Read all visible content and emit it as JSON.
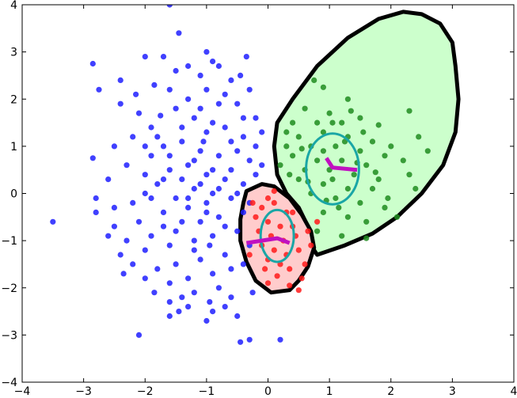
{
  "chart_data": {
    "type": "scatter",
    "title": "",
    "xlabel": "",
    "ylabel": "",
    "xlim": [
      -4,
      4
    ],
    "ylim": [
      -4,
      4
    ],
    "xticks": [
      -4,
      -3,
      -2,
      -1,
      0,
      1,
      2,
      3,
      4
    ],
    "yticks": [
      -4,
      -3,
      -2,
      -1,
      0,
      1,
      2,
      3,
      4
    ],
    "xtick_labels": [
      "−4",
      "−3",
      "−2",
      "−1",
      "0",
      "1",
      "2",
      "3",
      "4"
    ],
    "ytick_labels": [
      "−4",
      "−3",
      "−2",
      "−1",
      "0",
      "1",
      "2",
      "3",
      "4"
    ],
    "grid": false,
    "colors": {
      "blue": "#1f1fff",
      "green": "#1e8c1e",
      "red": "#ff1a1a",
      "green_fill": "#ccffcc",
      "red_fill": "#ffcccc",
      "boundary": "#000000",
      "ellipse": "#1aa6a6",
      "path": "#c010c0"
    },
    "series": [
      {
        "color": "blue",
        "points": [
          [
            -1.0,
            3.0
          ],
          [
            -0.9,
            2.8
          ],
          [
            -1.7,
            2.9
          ],
          [
            -2.0,
            2.9
          ],
          [
            -2.85,
            2.75
          ],
          [
            -2.75,
            2.2
          ],
          [
            -1.45,
            3.4
          ],
          [
            -1.6,
            4.0
          ],
          [
            -1.3,
            2.7
          ],
          [
            -1.1,
            2.5
          ],
          [
            -0.6,
            2.4
          ],
          [
            -0.45,
            2.5
          ],
          [
            -0.3,
            2.2
          ],
          [
            -1.85,
            2.3
          ],
          [
            -2.15,
            2.1
          ],
          [
            -2.4,
            1.9
          ],
          [
            -1.6,
            2.2
          ],
          [
            -1.0,
            2.2
          ],
          [
            -0.8,
            1.9
          ],
          [
            -0.2,
            1.6
          ],
          [
            -1.5,
            1.8
          ],
          [
            -2.1,
            1.7
          ],
          [
            -1.9,
            1.4
          ],
          [
            -1.2,
            1.6
          ],
          [
            -1.0,
            1.3
          ],
          [
            -0.7,
            1.4
          ],
          [
            -0.4,
            1.2
          ],
          [
            -1.4,
            1.1
          ],
          [
            -1.7,
            1.0
          ],
          [
            -2.2,
            1.2
          ],
          [
            -2.5,
            1.0
          ],
          [
            -1.9,
            0.8
          ],
          [
            -1.1,
            0.9
          ],
          [
            -0.8,
            0.8
          ],
          [
            -0.5,
            0.9
          ],
          [
            -0.3,
            0.7
          ],
          [
            -0.1,
            0.6
          ],
          [
            -1.3,
            0.6
          ],
          [
            -1.6,
            0.5
          ],
          [
            -2.0,
            0.4
          ],
          [
            -2.3,
            0.6
          ],
          [
            -2.85,
            0.75
          ],
          [
            -2.6,
            0.3
          ],
          [
            -1.8,
            0.2
          ],
          [
            -1.4,
            0.3
          ],
          [
            -1.0,
            0.4
          ],
          [
            -0.7,
            0.3
          ],
          [
            -0.4,
            0.2
          ],
          [
            -0.2,
            0.4
          ],
          [
            -1.2,
            0.1
          ],
          [
            -0.9,
            0.0
          ],
          [
            -1.5,
            -0.1
          ],
          [
            -1.9,
            -0.1
          ],
          [
            -2.2,
            -0.2
          ],
          [
            -2.5,
            -0.3
          ],
          [
            -2.8,
            -0.4
          ],
          [
            -2.5,
            -0.7
          ],
          [
            -2.1,
            -0.6
          ],
          [
            -1.7,
            -0.4
          ],
          [
            -1.3,
            -0.3
          ],
          [
            -1.0,
            -0.2
          ],
          [
            -0.6,
            -0.1
          ],
          [
            -0.4,
            -0.4
          ],
          [
            -0.8,
            -0.5
          ],
          [
            -1.1,
            -0.6
          ],
          [
            -1.5,
            -0.8
          ],
          [
            -1.9,
            -0.9
          ],
          [
            -2.3,
            -1.0
          ],
          [
            -2.4,
            -1.3
          ],
          [
            -2.0,
            -1.2
          ],
          [
            -1.6,
            -1.1
          ],
          [
            -1.2,
            -1.0
          ],
          [
            -0.9,
            -0.9
          ],
          [
            -0.5,
            -0.8
          ],
          [
            -0.3,
            -1.1
          ],
          [
            -0.7,
            -1.3
          ],
          [
            -1.1,
            -1.4
          ],
          [
            -1.5,
            -1.5
          ],
          [
            -1.8,
            -1.6
          ],
          [
            -2.2,
            -1.5
          ],
          [
            -2.0,
            -1.8
          ],
          [
            -1.6,
            -1.9
          ],
          [
            -1.3,
            -1.8
          ],
          [
            -0.9,
            -1.7
          ],
          [
            -0.6,
            -1.6
          ],
          [
            -0.4,
            -1.5
          ],
          [
            -0.8,
            -2.0
          ],
          [
            -1.2,
            -2.1
          ],
          [
            -1.6,
            -2.3
          ],
          [
            -0.95,
            -2.3
          ],
          [
            -0.7,
            -2.4
          ],
          [
            -1.45,
            -2.5
          ],
          [
            -0.5,
            -2.6
          ],
          [
            -0.9,
            -2.5
          ],
          [
            -1.3,
            -2.4
          ],
          [
            -0.45,
            -3.15
          ],
          [
            -0.3,
            -3.1
          ],
          [
            -2.1,
            -3.0
          ],
          [
            -3.5,
            -0.6
          ],
          [
            -1.4,
            -2.2
          ],
          [
            -1.6,
            -2.6
          ],
          [
            -0.6,
            -2.2
          ],
          [
            -1.1,
            1.8
          ],
          [
            -0.5,
            1.9
          ],
          [
            -1.3,
            2.0
          ],
          [
            -0.9,
            1.5
          ],
          [
            -0.6,
            1.1
          ],
          [
            -1.2,
            0.7
          ],
          [
            -1.6,
            0.8
          ],
          [
            -0.9,
            0.5
          ],
          [
            -1.3,
            -0.1
          ],
          [
            -1.0,
            -0.4
          ],
          [
            -0.7,
            -0.7
          ],
          [
            -1.4,
            -0.6
          ],
          [
            -1.7,
            -0.7
          ],
          [
            -0.5,
            0.0
          ],
          [
            -0.3,
            -0.2
          ],
          [
            -2.0,
            0.0
          ],
          [
            -1.7,
            0.3
          ],
          [
            -1.1,
            0.2
          ],
          [
            -0.8,
            0.1
          ],
          [
            -0.6,
            0.5
          ],
          [
            -0.2,
            1.0
          ],
          [
            -1.4,
            1.4
          ],
          [
            -1.8,
            1.2
          ],
          [
            -2.0,
            1.0
          ],
          [
            -0.4,
            1.6
          ],
          [
            -0.1,
            1.3
          ],
          [
            -0.7,
            2.1
          ],
          [
            -1.5,
            2.6
          ],
          [
            -2.4,
            2.4
          ],
          [
            -0.8,
            2.7
          ],
          [
            -0.35,
            2.9
          ],
          [
            -1.05,
            1.1
          ],
          [
            -1.2,
            -1.2
          ],
          [
            -0.95,
            -1.1
          ],
          [
            -2.6,
            -0.9
          ],
          [
            -2.8,
            -0.1
          ],
          [
            -1.85,
            -2.1
          ],
          [
            -1.0,
            -2.7
          ],
          [
            -0.25,
            -2.1
          ],
          [
            -2.35,
            -1.7
          ],
          [
            0.2,
            -3.1
          ],
          [
            -1.75,
            1.65
          ]
        ]
      },
      {
        "color": "green",
        "points": [
          [
            0.75,
            2.4
          ],
          [
            0.9,
            2.25
          ],
          [
            1.3,
            2.0
          ],
          [
            0.6,
            1.8
          ],
          [
            1.0,
            1.7
          ],
          [
            1.5,
            1.6
          ],
          [
            0.4,
            1.5
          ],
          [
            0.8,
            1.5
          ],
          [
            1.2,
            1.5
          ],
          [
            1.8,
            1.45
          ],
          [
            2.3,
            1.75
          ],
          [
            0.5,
            1.2
          ],
          [
            0.9,
            1.3
          ],
          [
            1.3,
            1.2
          ],
          [
            1.7,
            1.1
          ],
          [
            2.0,
            1.0
          ],
          [
            0.3,
            1.0
          ],
          [
            0.7,
            1.0
          ],
          [
            1.1,
            1.0
          ],
          [
            1.5,
            0.9
          ],
          [
            1.9,
            0.8
          ],
          [
            2.2,
            0.7
          ],
          [
            0.4,
            0.8
          ],
          [
            0.8,
            0.7
          ],
          [
            1.2,
            0.7
          ],
          [
            1.6,
            0.6
          ],
          [
            0.2,
            0.6
          ],
          [
            0.6,
            0.5
          ],
          [
            1.0,
            0.5
          ],
          [
            1.4,
            0.4
          ],
          [
            1.8,
            0.3
          ],
          [
            2.3,
            0.4
          ],
          [
            0.5,
            0.3
          ],
          [
            0.9,
            0.2
          ],
          [
            1.3,
            0.1
          ],
          [
            1.7,
            0.1
          ],
          [
            0.7,
            0.0
          ],
          [
            1.1,
            -0.1
          ],
          [
            1.5,
            -0.2
          ],
          [
            1.9,
            -0.3
          ],
          [
            0.9,
            -0.4
          ],
          [
            1.3,
            -0.5
          ],
          [
            1.6,
            -0.6
          ],
          [
            2.1,
            -0.5
          ],
          [
            0.8,
            -0.8
          ],
          [
            1.2,
            -0.9
          ],
          [
            0.9,
            0.9
          ],
          [
            1.25,
            1.1
          ],
          [
            0.55,
            0.95
          ],
          [
            1.55,
            1.3
          ],
          [
            2.45,
            1.2
          ],
          [
            2.6,
            0.9
          ],
          [
            1.05,
            0.3
          ],
          [
            0.3,
            1.3
          ],
          [
            1.05,
            1.5
          ],
          [
            1.45,
            0.65
          ],
          [
            0.65,
            0.25
          ],
          [
            1.75,
            0.45
          ],
          [
            1.95,
            -0.1
          ],
          [
            1.15,
            -0.3
          ],
          [
            0.35,
            0.4
          ],
          [
            2.4,
            0.1
          ],
          [
            1.35,
            1.75
          ],
          [
            1.6,
            -0.95
          ],
          [
            0.95,
            -0.15
          ]
        ]
      },
      {
        "color": "red",
        "points": [
          [
            0.0,
            -0.1
          ],
          [
            0.1,
            -0.2
          ],
          [
            -0.1,
            -0.3
          ],
          [
            0.3,
            -0.4
          ],
          [
            -0.2,
            -0.5
          ],
          [
            0.0,
            -0.6
          ],
          [
            0.2,
            -0.7
          ],
          [
            0.4,
            -0.7
          ],
          [
            -0.15,
            -0.8
          ],
          [
            0.05,
            -0.9
          ],
          [
            0.25,
            -1.0
          ],
          [
            0.45,
            -0.9
          ],
          [
            -0.1,
            -1.1
          ],
          [
            0.1,
            -1.2
          ],
          [
            0.3,
            -1.3
          ],
          [
            0.5,
            -1.2
          ],
          [
            0.0,
            -1.4
          ],
          [
            0.2,
            -1.5
          ],
          [
            0.35,
            -1.6
          ],
          [
            0.6,
            -1.5
          ],
          [
            -0.05,
            -1.6
          ],
          [
            0.15,
            -1.75
          ],
          [
            0.55,
            -1.8
          ],
          [
            0.4,
            -0.4
          ],
          [
            0.1,
            0.05
          ],
          [
            -0.25,
            -0.2
          ],
          [
            0.65,
            -0.8
          ],
          [
            0.7,
            -1.1
          ],
          [
            0.0,
            -1.9
          ],
          [
            0.35,
            -1.95
          ],
          [
            0.8,
            -0.6
          ],
          [
            0.5,
            -2.05
          ],
          [
            -0.3,
            -1.3
          ]
        ]
      }
    ],
    "regions": [
      {
        "color": "green_fill",
        "boundary": [
          [
            0.15,
            0.4
          ],
          [
            0.1,
            1.0
          ],
          [
            0.15,
            1.5
          ],
          [
            0.4,
            2.0
          ],
          [
            0.8,
            2.7
          ],
          [
            1.3,
            3.3
          ],
          [
            1.8,
            3.7
          ],
          [
            2.2,
            3.85
          ],
          [
            2.5,
            3.8
          ],
          [
            2.8,
            3.6
          ],
          [
            3.0,
            3.2
          ],
          [
            3.05,
            2.7
          ],
          [
            3.1,
            2.0
          ],
          [
            3.05,
            1.3
          ],
          [
            2.85,
            0.6
          ],
          [
            2.5,
            0.0
          ],
          [
            2.1,
            -0.5
          ],
          [
            1.7,
            -0.85
          ],
          [
            1.25,
            -1.1
          ],
          [
            0.8,
            -1.3
          ],
          [
            0.7,
            -1.1
          ],
          [
            0.65,
            -0.7
          ],
          [
            0.5,
            -0.3
          ],
          [
            0.3,
            0.0
          ],
          [
            0.15,
            0.4
          ]
        ]
      },
      {
        "color": "red_fill",
        "boundary": [
          [
            -0.35,
            0.05
          ],
          [
            -0.1,
            0.2
          ],
          [
            0.1,
            0.15
          ],
          [
            0.35,
            -0.1
          ],
          [
            0.55,
            -0.45
          ],
          [
            0.7,
            -0.8
          ],
          [
            0.75,
            -1.15
          ],
          [
            0.65,
            -1.55
          ],
          [
            0.5,
            -1.85
          ],
          [
            0.35,
            -2.05
          ],
          [
            0.05,
            -2.1
          ],
          [
            -0.2,
            -1.85
          ],
          [
            -0.35,
            -1.45
          ],
          [
            -0.45,
            -1.0
          ],
          [
            -0.45,
            -0.55
          ],
          [
            -0.4,
            -0.2
          ],
          [
            -0.35,
            0.05
          ]
        ]
      }
    ],
    "ellipses": [
      {
        "cx": 1.05,
        "cy": 0.52,
        "rx": 0.43,
        "ry": 0.75,
        "color": "ellipse"
      },
      {
        "cx": 0.15,
        "cy": -0.9,
        "rx": 0.27,
        "ry": 0.55,
        "color": "ellipse"
      }
    ],
    "paths": [
      {
        "color": "path",
        "points": [
          [
            0.95,
            0.75
          ],
          [
            1.05,
            0.55
          ],
          [
            1.45,
            0.5
          ]
        ]
      },
      {
        "color": "path",
        "points": [
          [
            -0.35,
            -1.05
          ],
          [
            0.15,
            -0.95
          ],
          [
            0.35,
            -1.05
          ]
        ]
      }
    ]
  }
}
